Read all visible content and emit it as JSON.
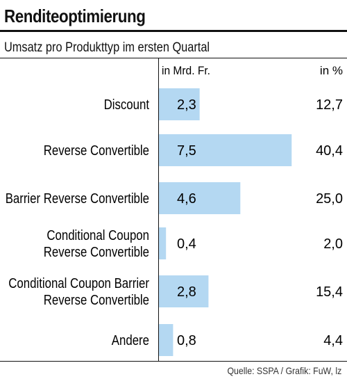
{
  "chart_data": {
    "type": "bar",
    "orientation": "horizontal",
    "title": "Renditeoptimierung",
    "subtitle": "Umsatz pro Produkttyp im ersten Quartal",
    "value_header": "in Mrd. Fr.",
    "percent_header": "in %",
    "categories": [
      [
        "Discount"
      ],
      [
        "Reverse Convertible"
      ],
      [
        "Barrier Reverse Convertible"
      ],
      [
        "Conditional Coupon",
        "Reverse Convertible"
      ],
      [
        "Conditional Coupon Barrier",
        "Reverse Convertible"
      ],
      [
        "Andere"
      ]
    ],
    "values": [
      2.3,
      7.5,
      4.6,
      0.4,
      2.8,
      0.8
    ],
    "value_labels": [
      "2,3",
      "7,5",
      "4,6",
      "0,4",
      "2,8",
      "0,8"
    ],
    "percent_labels": [
      "12,7",
      "40,4",
      "25,0",
      "2,0",
      "15,4",
      "4,4"
    ],
    "bar_color": "#b4d8f2",
    "grid": false
  },
  "source": "Quelle: SSPA / Grafik: FuW, lz"
}
